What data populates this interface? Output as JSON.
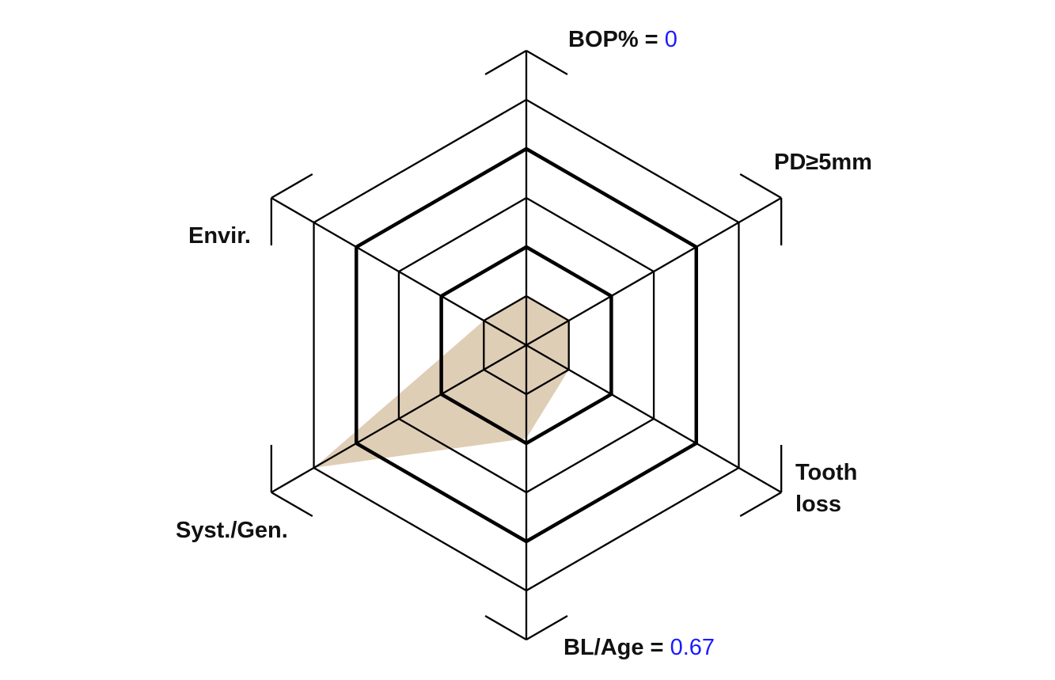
{
  "chart_data": {
    "type": "radar",
    "axes": [
      {
        "label": "BOP% = ",
        "value_text": "0",
        "value": 1
      },
      {
        "label": "PD≥5mm",
        "value": 1
      },
      {
        "label": "Tooth loss",
        "value": 1
      },
      {
        "label": "BL/Age = ",
        "value_text": "0.67",
        "value": 1.9
      },
      {
        "label": "Syst./Gen.",
        "value": 5
      },
      {
        "label": "Envir.",
        "value": 1
      }
    ],
    "rlim": [
      0,
      5
    ],
    "levels": 5,
    "thick_levels": [
      2,
      4
    ],
    "fill_color": "#c9ad86",
    "value_text_color": "#1a1aff"
  },
  "labels": {
    "bop": "BOP% = ",
    "bop_value": "0",
    "pd": "PD≥5mm",
    "tooth1": "Tooth",
    "tooth2": "loss",
    "bl": "BL/Age = ",
    "bl_value": "0.67",
    "syst": "Syst./Gen.",
    "envir": "Envir."
  }
}
